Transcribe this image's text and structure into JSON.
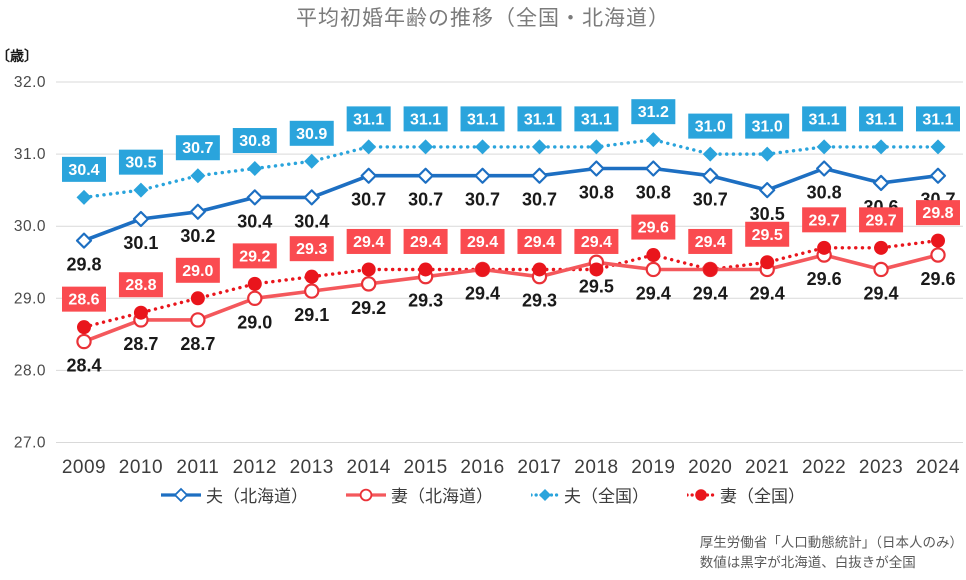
{
  "title": "平均初婚年齢の推移（全国・北海道）",
  "y_axis": {
    "unit_label": "〔歳〕",
    "tick_labels": [
      "32.0",
      "31.0",
      "30.0",
      "29.0",
      "28.0",
      "27.0"
    ],
    "tick_values": [
      32,
      31,
      30,
      29,
      28,
      27
    ]
  },
  "x_axis": {
    "tick_labels": [
      "2009",
      "2010",
      "2011",
      "2012",
      "2013",
      "2014",
      "2015",
      "2016",
      "2017",
      "2018",
      "2019",
      "2020",
      "2021",
      "2022",
      "2023",
      "2024"
    ]
  },
  "chart_data": {
    "type": "line",
    "title": "平均初婚年齢の推移（全国・北海道）",
    "categories": [
      2009,
      2010,
      2011,
      2012,
      2013,
      2014,
      2015,
      2016,
      2017,
      2018,
      2019,
      2020,
      2021,
      2022,
      2023,
      2024
    ],
    "ylim": [
      27,
      32
    ],
    "grid": "horizontal",
    "legend_position": "bottom",
    "ylabel_unit": "歳",
    "series": [
      {
        "key": "husband-hokkaido",
        "name": "夫（北海道）",
        "values": [
          29.8,
          30.1,
          30.2,
          30.4,
          30.4,
          30.7,
          30.7,
          30.7,
          30.7,
          30.8,
          30.8,
          30.7,
          30.5,
          30.8,
          30.6,
          30.7
        ],
        "color": "#1D6FC2",
        "line": "solid",
        "marker": "open-diamond",
        "labels": "black-below"
      },
      {
        "key": "wife-hokkaido",
        "name": "妻（北海道）",
        "values": [
          28.4,
          28.7,
          28.7,
          29.0,
          29.1,
          29.2,
          29.3,
          29.4,
          29.3,
          29.5,
          29.4,
          29.4,
          29.4,
          29.6,
          29.4,
          29.6
        ],
        "color": "#F4585C",
        "marker_stroke": "#EA3238",
        "line": "solid",
        "marker": "open-circle",
        "labels": "black-below"
      },
      {
        "key": "husband-national",
        "name": "夫（全国）",
        "values": [
          30.4,
          30.5,
          30.7,
          30.8,
          30.9,
          31.1,
          31.1,
          31.1,
          31.1,
          31.1,
          31.2,
          31.0,
          31.0,
          31.1,
          31.1,
          31.1
        ],
        "color": "#2AA4DC",
        "line": "dotted",
        "marker": "filled-diamond",
        "labels": "box-above",
        "box_color": "#2AA4DC"
      },
      {
        "key": "wife-national",
        "name": "妻（全国）",
        "values": [
          28.6,
          28.8,
          29.0,
          29.2,
          29.3,
          29.4,
          29.4,
          29.4,
          29.4,
          29.4,
          29.6,
          29.4,
          29.5,
          29.7,
          29.7,
          29.8
        ],
        "color": "#E9151C",
        "line": "dotted",
        "marker": "filled-circle",
        "labels": "box-above",
        "box_color": "#FA4B50"
      }
    ]
  },
  "colors": {
    "grid": "#D9D9D9",
    "value_label_black": "#1A1A1A",
    "title": "#7B7B7B",
    "y_axis_text": "#4A4A4A",
    "x_axis_text": "#3D3D3D",
    "footer": "#595959"
  },
  "footer": {
    "line1": "厚生労働省「人口動態統計」（日本人のみ）",
    "line2": "数値は黒字が北海道、白抜きが全国"
  }
}
